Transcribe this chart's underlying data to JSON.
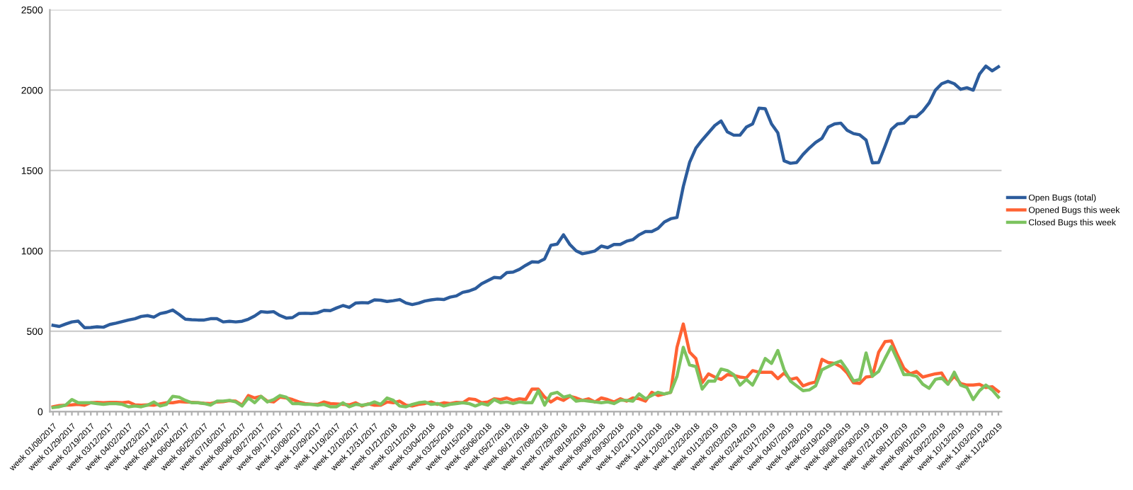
{
  "chart_data": {
    "type": "line",
    "categories": [
      "week 01/08/2017",
      null,
      null,
      "week 01/29/2017",
      null,
      null,
      "week 02/19/2017",
      null,
      null,
      "week 03/12/2017",
      null,
      null,
      "week 04/02/2017",
      null,
      null,
      "week 04/23/2017",
      null,
      null,
      "week 05/14/2017",
      null,
      null,
      "week 06/04/2017",
      null,
      null,
      "week 06/25/2017",
      null,
      null,
      "week 07/16/2017",
      null,
      null,
      "week 08/06/2017",
      null,
      null,
      "week 08/27/2017",
      null,
      null,
      "week 09/17/2017",
      null,
      null,
      "week 10/08/2017",
      null,
      null,
      "week 10/29/2017",
      null,
      null,
      "week 11/19/2017",
      null,
      null,
      "week 12/10/2017",
      null,
      null,
      "week 12/31/2017",
      null,
      null,
      "week 01/21/2018",
      null,
      null,
      "week 02/11/2018",
      null,
      null,
      "week 03/04/2018",
      null,
      null,
      "week 03/25/2018",
      null,
      null,
      "week 04/15/2018",
      null,
      null,
      "week 05/06/2018",
      null,
      null,
      "week 05/27/2018",
      null,
      null,
      "week 06/17/2018",
      null,
      null,
      "week 07/08/2018",
      null,
      null,
      "week 07/29/2018",
      null,
      null,
      "week 08/19/2018",
      null,
      null,
      "week 09/09/2018",
      null,
      null,
      "week 09/30/2018",
      null,
      null,
      "week 10/21/2018",
      null,
      null,
      "week 11/11/2018",
      null,
      null,
      "week 12/02/2018",
      null,
      null,
      "week 12/23/2018",
      null,
      null,
      "week 01/13/2019",
      null,
      null,
      "week 02/03/2019",
      null,
      null,
      "week 02/24/2019",
      null,
      null,
      "week 03/17/2019",
      null,
      null,
      "week 04/07/2019",
      null,
      null,
      "week 04/28/2019",
      null,
      null,
      "week 05/19/2019",
      null,
      null,
      "week 06/09/2019",
      null,
      null,
      "week 06/30/2019",
      null,
      null,
      "week 07/21/2019",
      null,
      null,
      "week 08/11/2019",
      null,
      null,
      "week 09/01/2019",
      null,
      null,
      "week 09/22/2019",
      null,
      null,
      "week 10/13/2019",
      null,
      null,
      "week 11/03/2019",
      null,
      null,
      "week 11/24/2019"
    ],
    "series": [
      {
        "name": "Open Bugs (total)",
        "color": "#2c5c9c",
        "values": [
          537,
          530,
          545,
          558,
          563,
          522,
          523,
          528,
          525,
          542,
          550,
          560,
          570,
          578,
          592,
          597,
          588,
          610,
          618,
          632,
          605,
          575,
          572,
          570,
          570,
          578,
          578,
          558,
          562,
          558,
          562,
          575,
          595,
          622,
          618,
          622,
          598,
          582,
          585,
          610,
          612,
          610,
          615,
          630,
          628,
          645,
          660,
          648,
          675,
          678,
          676,
          695,
          693,
          685,
          690,
          697,
          676,
          666,
          675,
          688,
          695,
          700,
          697,
          712,
          720,
          742,
          750,
          765,
          795,
          815,
          835,
          832,
          865,
          868,
          885,
          910,
          932,
          930,
          950,
          1035,
          1042,
          1100,
          1040,
          1000,
          982,
          990,
          1000,
          1030,
          1020,
          1040,
          1040,
          1060,
          1070,
          1100,
          1120,
          1120,
          1140,
          1180,
          1200,
          1208,
          1400,
          1550,
          1640,
          1690,
          1735,
          1780,
          1808,
          1740,
          1720,
          1720,
          1770,
          1790,
          1888,
          1885,
          1790,
          1735,
          1560,
          1545,
          1550,
          1600,
          1640,
          1675,
          1700,
          1770,
          1790,
          1795,
          1750,
          1730,
          1722,
          1690,
          1548,
          1550,
          1650,
          1755,
          1790,
          1795,
          1835,
          1835,
          1870,
          1920,
          2000,
          2040,
          2055,
          2040,
          2005,
          2015,
          2000,
          2100,
          2150,
          2120,
          2145
        ]
      },
      {
        "name": "Opened Bugs this week",
        "color": "#ff6233",
        "values": [
          30,
          38,
          40,
          42,
          45,
          40,
          55,
          58,
          55,
          58,
          58,
          55,
          60,
          42,
          40,
          42,
          40,
          48,
          55,
          55,
          62,
          60,
          58,
          55,
          52,
          50,
          60,
          62,
          68,
          65,
          40,
          100,
          85,
          95,
          65,
          60,
          90,
          85,
          75,
          60,
          50,
          45,
          45,
          60,
          50,
          48,
          45,
          42,
          55,
          35,
          48,
          40,
          40,
          60,
          55,
          65,
          40,
          35,
          45,
          50,
          60,
          45,
          55,
          50,
          58,
          55,
          80,
          75,
          55,
          60,
          80,
          75,
          85,
          70,
          80,
          75,
          140,
          140,
          90,
          60,
          85,
          70,
          95,
          85,
          70,
          80,
          60,
          85,
          75,
          60,
          80,
          65,
          85,
          80,
          65,
          120,
          100,
          110,
          120,
          400,
          545,
          370,
          330,
          180,
          235,
          215,
          200,
          230,
          225,
          215,
          210,
          255,
          245,
          245,
          245,
          205,
          240,
          200,
          210,
          160,
          175,
          185,
          325,
          305,
          300,
          280,
          240,
          180,
          175,
          215,
          220,
          370,
          435,
          440,
          350,
          270,
          235,
          250,
          215,
          225,
          235,
          240,
          175,
          220,
          175,
          165,
          165,
          170,
          150,
          155,
          125
        ]
      },
      {
        "name": "Closed Bugs this week",
        "color": "#7cc35f",
        "values": [
          25,
          30,
          40,
          75,
          55,
          55,
          55,
          50,
          45,
          50,
          50,
          45,
          30,
          35,
          30,
          40,
          60,
          35,
          45,
          95,
          90,
          70,
          55,
          55,
          50,
          40,
          65,
          65,
          70,
          60,
          35,
          85,
          55,
          95,
          60,
          75,
          100,
          90,
          50,
          50,
          45,
          45,
          40,
          45,
          30,
          30,
          55,
          30,
          45,
          40,
          45,
          60,
          45,
          85,
          70,
          35,
          30,
          45,
          55,
          60,
          45,
          50,
          35,
          45,
          50,
          55,
          50,
          35,
          50,
          40,
          75,
          55,
          60,
          50,
          60,
          55,
          55,
          130,
          40,
          110,
          120,
          90,
          100,
          65,
          70,
          65,
          60,
          55,
          60,
          50,
          70,
          70,
          65,
          110,
          80,
          100,
          120,
          110,
          120,
          220,
          400,
          290,
          280,
          140,
          190,
          190,
          265,
          255,
          230,
          165,
          200,
          165,
          240,
          330,
          300,
          380,
          260,
          190,
          160,
          130,
          135,
          160,
          260,
          280,
          300,
          315,
          260,
          190,
          200,
          365,
          220,
          250,
          330,
          405,
          320,
          230,
          230,
          220,
          170,
          145,
          200,
          210,
          170,
          245,
          165,
          150,
          75,
          130,
          165,
          135,
          90
        ]
      }
    ],
    "ylim": [
      0,
      2500
    ],
    "yticks": [
      0,
      500,
      1000,
      1500,
      2000,
      2500
    ],
    "grid": "y",
    "legend": "right",
    "marker": "none",
    "line_style": "solid"
  }
}
